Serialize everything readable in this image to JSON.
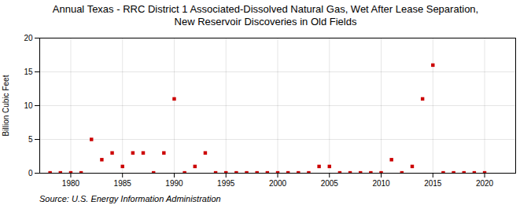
{
  "chart_data": {
    "type": "scatter",
    "title": "Annual Texas - RRC District 1 Associated-Dissolved Natural Gas, Wet After Lease Separation,\nNew Reservoir Discoveries in Old Fields",
    "ylabel": "Billion Cubic Feet",
    "source": "Source: U.S. Energy Information Administration",
    "color": "#cc0000",
    "marker": "square",
    "grid": true,
    "xlim": [
      1977,
      2023
    ],
    "ylim": [
      0,
      20
    ],
    "xticks": [
      1980,
      1985,
      1990,
      1995,
      2000,
      2005,
      2010,
      2015,
      2020
    ],
    "yticks": [
      0,
      5,
      10,
      15,
      20
    ],
    "x": [
      1978,
      1979,
      1980,
      1981,
      1982,
      1983,
      1984,
      1985,
      1986,
      1987,
      1988,
      1989,
      1990,
      1991,
      1992,
      1993,
      1994,
      1995,
      1996,
      1997,
      1998,
      1999,
      2000,
      2001,
      2002,
      2003,
      2004,
      2005,
      2006,
      2007,
      2008,
      2009,
      2010,
      2011,
      2012,
      2013,
      2014,
      2015,
      2016,
      2017,
      2018,
      2019,
      2020
    ],
    "values": [
      0.05,
      0.05,
      0.05,
      0.05,
      5.0,
      2.0,
      3.0,
      1.0,
      3.0,
      3.0,
      0.05,
      3.0,
      11.0,
      0.05,
      1.0,
      3.0,
      0.05,
      0.05,
      0.05,
      0.05,
      0.05,
      0.05,
      0.05,
      0.05,
      0.05,
      0.05,
      1.0,
      1.0,
      0.05,
      0.05,
      0.05,
      0.05,
      0.05,
      2.0,
      0.05,
      1.0,
      11.0,
      16.0,
      0.05,
      0.05,
      0.05,
      0.05,
      0.05
    ]
  }
}
